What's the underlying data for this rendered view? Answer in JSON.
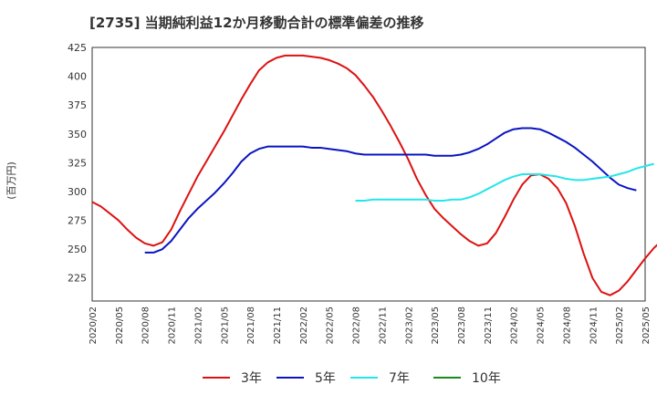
{
  "chart_data": {
    "type": "line",
    "title": "[2735]  当期純利益12か月移動合計の標準偏差の推移",
    "ylabel": "(百万円)",
    "xlabel": "",
    "ylim": [
      205,
      425
    ],
    "yticks": [
      225,
      250,
      275,
      300,
      325,
      350,
      375,
      400,
      425
    ],
    "x_ticks": [
      "2020/02",
      "2020/05",
      "2020/08",
      "2020/11",
      "2021/02",
      "2021/05",
      "2021/08",
      "2021/11",
      "2022/02",
      "2022/05",
      "2022/08",
      "2022/11",
      "2023/02",
      "2023/05",
      "2023/08",
      "2023/11",
      "2024/02",
      "2024/05",
      "2024/08",
      "2024/11",
      "2025/02",
      "2025/05"
    ],
    "grid": true,
    "legend_position": "bottom",
    "colors": {
      "3年": "#dd1111",
      "5年": "#0a14c0",
      "7年": "#22e6ea",
      "10年": "#1a8a1a"
    },
    "series": [
      {
        "name": "3年",
        "start": "2020/02",
        "values": [
          291,
          287,
          281,
          275,
          267,
          260,
          255,
          253,
          256,
          267,
          283,
          298,
          313,
          326,
          339,
          352,
          366,
          380,
          393,
          405,
          412,
          416,
          418,
          418,
          418,
          417,
          416,
          414,
          411,
          407,
          401,
          392,
          382,
          370,
          357,
          343,
          328,
          311,
          297,
          285,
          277,
          270,
          263,
          257,
          253,
          255,
          264,
          278,
          293,
          306,
          314,
          315,
          311,
          303,
          290,
          270,
          246,
          225,
          213,
          210,
          214,
          222,
          232,
          242,
          251,
          258
        ]
      },
      {
        "name": "5年",
        "start": "2020/08",
        "values": [
          247,
          247,
          250,
          257,
          267,
          277,
          285,
          292,
          299,
          307,
          316,
          326,
          333,
          337,
          339,
          339,
          339,
          339,
          339,
          338,
          338,
          337,
          336,
          335,
          333,
          332,
          332,
          332,
          332,
          332,
          332,
          332,
          332,
          331,
          331,
          331,
          332,
          334,
          337,
          341,
          346,
          351,
          354,
          355,
          355,
          354,
          351,
          347,
          343,
          338,
          332,
          326,
          319,
          312,
          306,
          303,
          301
        ]
      },
      {
        "name": "7年",
        "start": "2022/08",
        "values": [
          292,
          292,
          293,
          293,
          293,
          293,
          293,
          293,
          293,
          292,
          292,
          293,
          293,
          295,
          298,
          302,
          306,
          310,
          313,
          315,
          315,
          315,
          314,
          313,
          311,
          310,
          310,
          311,
          312,
          313,
          315,
          317,
          320,
          322,
          324
        ]
      },
      {
        "name": "10年",
        "start": "2020/02",
        "values": []
      }
    ]
  }
}
